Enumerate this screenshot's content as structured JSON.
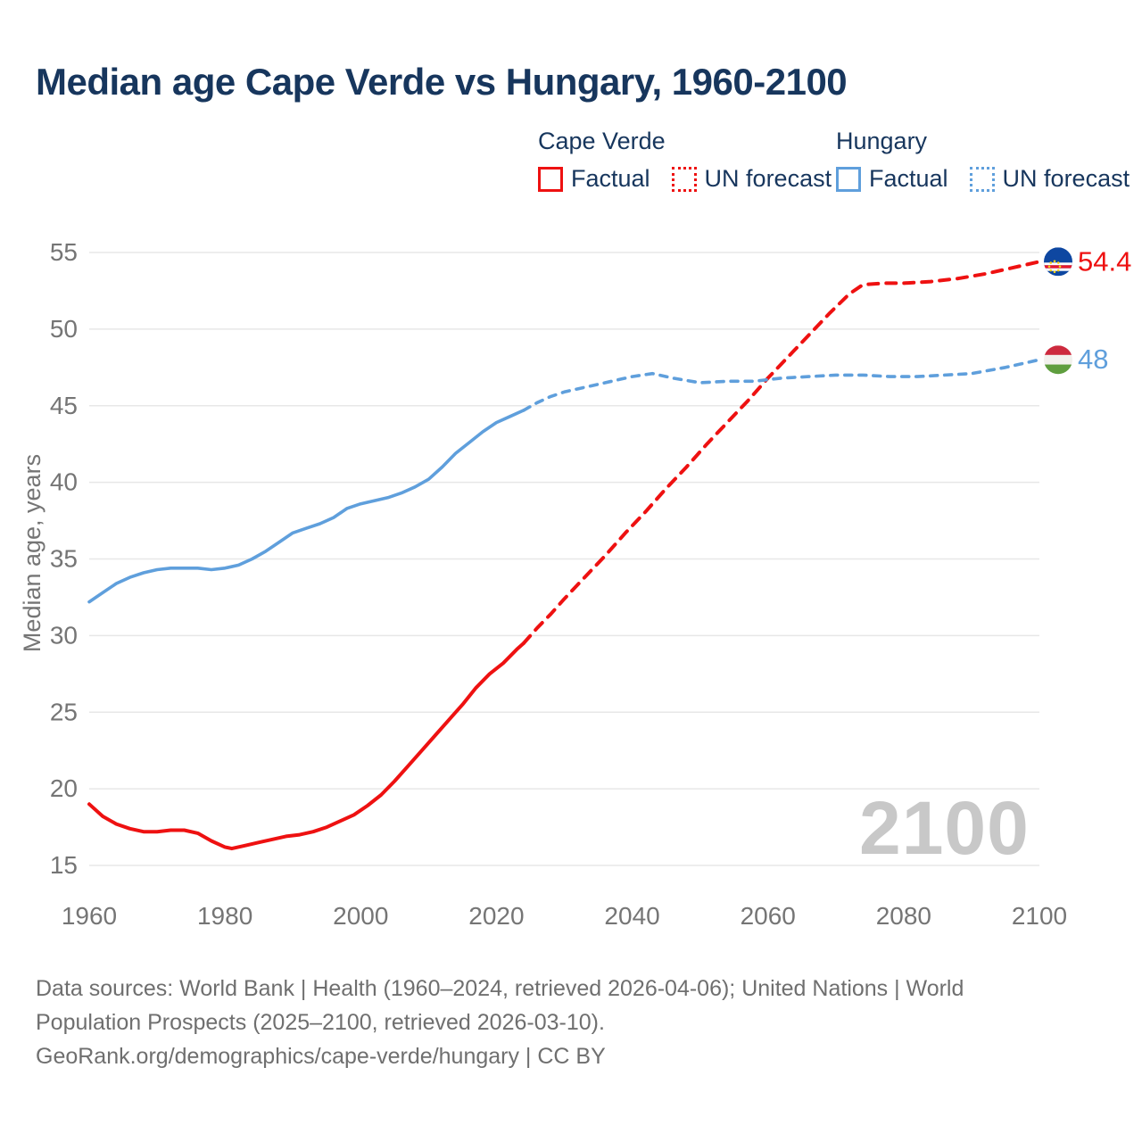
{
  "title": "Median age Cape Verde vs Hungary, 1960-2100",
  "colors": {
    "cape_verde": "#ee1111",
    "hungary": "#5f9fdc",
    "title_text": "#17365d",
    "axis_text": "#757575",
    "gridline": "#e7e7e7",
    "watermark": "#c8c8c8",
    "footer_text": "#6f6f6f"
  },
  "legend": {
    "groups": [
      {
        "name": "Cape Verde",
        "color": "#ee1111",
        "items": [
          {
            "label": "Factual",
            "style": "solid"
          },
          {
            "label": "UN forecast",
            "style": "dotted"
          }
        ]
      },
      {
        "name": "Hungary",
        "color": "#5f9fdc",
        "items": [
          {
            "label": "Factual",
            "style": "solid"
          },
          {
            "label": "UN forecast",
            "style": "dotted"
          }
        ]
      }
    ]
  },
  "chart_data": {
    "type": "line",
    "title": "Median age Cape Verde vs Hungary, 1960-2100",
    "xlabel": "",
    "ylabel": "Median age, years",
    "xlim": [
      1960,
      2100
    ],
    "ylim": [
      15,
      55
    ],
    "xticks": [
      1960,
      1980,
      2000,
      2020,
      2040,
      2060,
      2080,
      2100
    ],
    "yticks": [
      15,
      20,
      25,
      30,
      35,
      40,
      45,
      50,
      55
    ],
    "grid": "horizontal-only",
    "legend_position": "top",
    "watermark": "2100",
    "series": [
      {
        "name": "Cape Verde — Factual",
        "style": "solid",
        "color_key": "cape_verde",
        "x": [
          1960,
          1962,
          1964,
          1966,
          1968,
          1970,
          1972,
          1974,
          1976,
          1978,
          1980,
          1981,
          1983,
          1985,
          1987,
          1989,
          1991,
          1993,
          1995,
          1997,
          1999,
          2001,
          2003,
          2005,
          2007,
          2009,
          2011,
          2013,
          2015,
          2017,
          2019,
          2021,
          2023,
          2024
        ],
        "y": [
          19.0,
          18.2,
          17.7,
          17.4,
          17.2,
          17.2,
          17.3,
          17.3,
          17.1,
          16.6,
          16.2,
          16.1,
          16.3,
          16.5,
          16.7,
          16.9,
          17.0,
          17.2,
          17.5,
          17.9,
          18.3,
          18.9,
          19.6,
          20.5,
          21.5,
          22.5,
          23.5,
          24.5,
          25.5,
          26.6,
          27.5,
          28.2,
          29.1,
          29.5
        ]
      },
      {
        "name": "Cape Verde — UN forecast",
        "style": "dashed",
        "color_key": "cape_verde",
        "x": [
          2024,
          2026,
          2028,
          2030,
          2033,
          2036,
          2039,
          2042,
          2045,
          2048,
          2051,
          2054,
          2057,
          2060,
          2063,
          2066,
          2069,
          2072,
          2074,
          2077,
          2080,
          2084,
          2088,
          2092,
          2096,
          2100
        ],
        "y": [
          29.5,
          30.5,
          31.4,
          32.4,
          33.8,
          35.2,
          36.7,
          38.1,
          39.6,
          41.0,
          42.5,
          43.9,
          45.3,
          46.8,
          48.2,
          49.6,
          51.0,
          52.3,
          52.9,
          53.0,
          53.0,
          53.1,
          53.3,
          53.6,
          54.0,
          54.4
        ]
      },
      {
        "name": "Hungary — Factual",
        "style": "solid",
        "color_key": "hungary",
        "x": [
          1960,
          1962,
          1964,
          1966,
          1968,
          1970,
          1972,
          1974,
          1976,
          1978,
          1980,
          1982,
          1984,
          1986,
          1988,
          1990,
          1992,
          1994,
          1996,
          1998,
          2000,
          2002,
          2004,
          2006,
          2008,
          2010,
          2012,
          2014,
          2016,
          2018,
          2020,
          2022,
          2024
        ],
        "y": [
          32.2,
          32.8,
          33.4,
          33.8,
          34.1,
          34.3,
          34.4,
          34.4,
          34.4,
          34.3,
          34.4,
          34.6,
          35.0,
          35.5,
          36.1,
          36.7,
          37.0,
          37.3,
          37.7,
          38.3,
          38.6,
          38.8,
          39.0,
          39.3,
          39.7,
          40.2,
          41.0,
          41.9,
          42.6,
          43.3,
          43.9,
          44.3,
          44.7
        ]
      },
      {
        "name": "Hungary — UN forecast",
        "style": "dashed",
        "color_key": "hungary",
        "x": [
          2024,
          2026,
          2028,
          2030,
          2033,
          2036,
          2040,
          2043,
          2046,
          2050,
          2054,
          2058,
          2062,
          2066,
          2070,
          2074,
          2078,
          2082,
          2086,
          2090,
          2095,
          2100
        ],
        "y": [
          44.7,
          45.2,
          45.6,
          45.9,
          46.2,
          46.5,
          46.9,
          47.1,
          46.8,
          46.5,
          46.6,
          46.6,
          46.8,
          46.9,
          47.0,
          47.0,
          46.9,
          46.9,
          47.0,
          47.1,
          47.5,
          48.0
        ]
      }
    ],
    "end_labels": [
      {
        "text": "54.4",
        "value": 54.4,
        "color_key": "cape_verde",
        "flag": "cape-verde-flag"
      },
      {
        "text": "48",
        "value": 48,
        "color_key": "hungary",
        "flag": "hungary-flag"
      }
    ]
  },
  "flags": {
    "cape_verde": {
      "field": "#0e47a1",
      "stripe_red": "#e8192c",
      "stripe_white": "#ffffff",
      "stars": "#f7d116"
    },
    "hungary": {
      "top": "#cd2a3e",
      "middle": "#f2f1ed",
      "bottom": "#5f9e3f"
    }
  },
  "footer": {
    "lines": [
      "Data sources: World Bank | Health (1960–2024, retrieved 2026-04-06); United Nations | World",
      "Population Prospects (2025–2100, retrieved 2026-03-10).",
      "GeoRank.org/demographics/cape-verde/hungary | CC BY"
    ]
  }
}
